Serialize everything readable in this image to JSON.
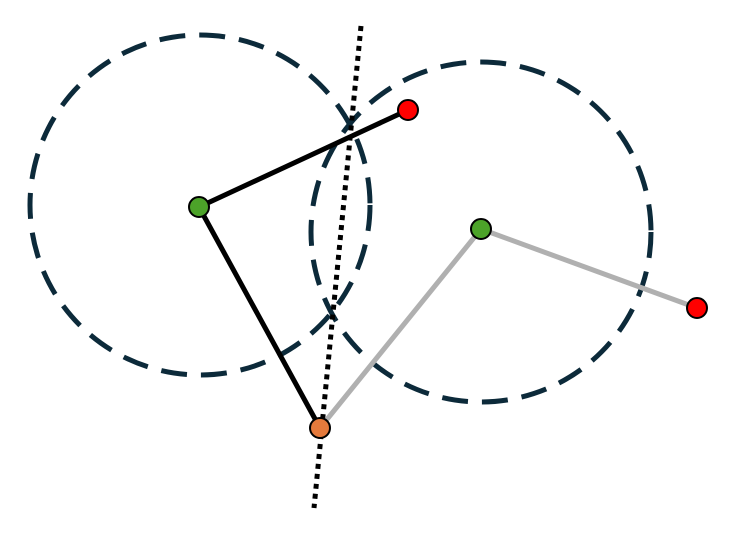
{
  "diagram": {
    "colors": {
      "background": "#ffffff",
      "circle_stroke": "#0c2a3a",
      "arm_primary": "#000000",
      "arm_secondary": "#b0b0b0",
      "joint_center": "#4ca329",
      "endpoint": "#ff0000",
      "shared_joint": "#e57a3c",
      "dotted_line": "#000000",
      "node_outline": "#000000"
    }
  }
}
